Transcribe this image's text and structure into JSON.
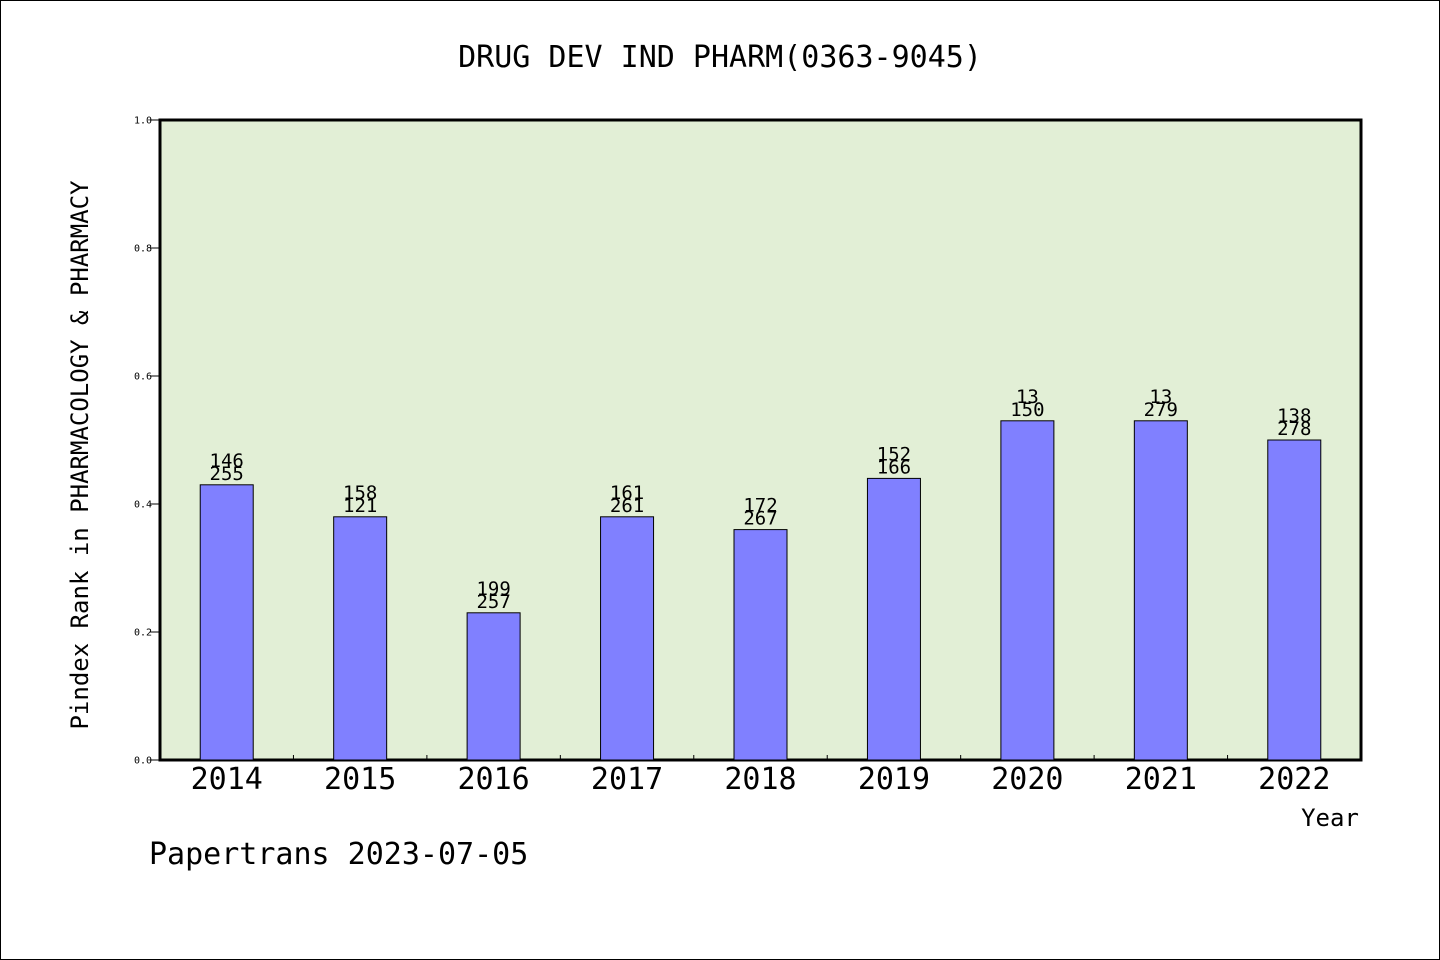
{
  "chart_data": {
    "type": "bar",
    "title": "DRUG DEV IND PHARM(0363-9045)",
    "xlabel": "Year",
    "ylabel": "Pindex Rank in PHARMACOLOGY & PHARMACY",
    "categories": [
      "2014",
      "2015",
      "2016",
      "2017",
      "2018",
      "2019",
      "2020",
      "2021",
      "2022"
    ],
    "values": [
      0.43,
      0.38,
      0.23,
      0.38,
      0.36,
      0.44,
      0.53,
      0.53,
      0.5
    ],
    "bar_labels_top": [
      "146",
      "158",
      "199",
      "161",
      "172",
      "152",
      "13",
      "13",
      "138"
    ],
    "bar_labels_bottom": [
      "255",
      "121",
      "257",
      "261",
      "267",
      "166",
      "150",
      "279",
      "278"
    ],
    "ylim": [
      0,
      1.0
    ],
    "yticks": [
      "0.0",
      "0.2",
      "0.4",
      "0.6",
      "0.8",
      "1.0"
    ],
    "grid": false,
    "colors": {
      "plot_background": "#e2efd6",
      "bar_fill": "#8080ff",
      "bar_stroke": "#000000"
    }
  },
  "footer": {
    "text": "Papertrans 2023-07-05"
  }
}
